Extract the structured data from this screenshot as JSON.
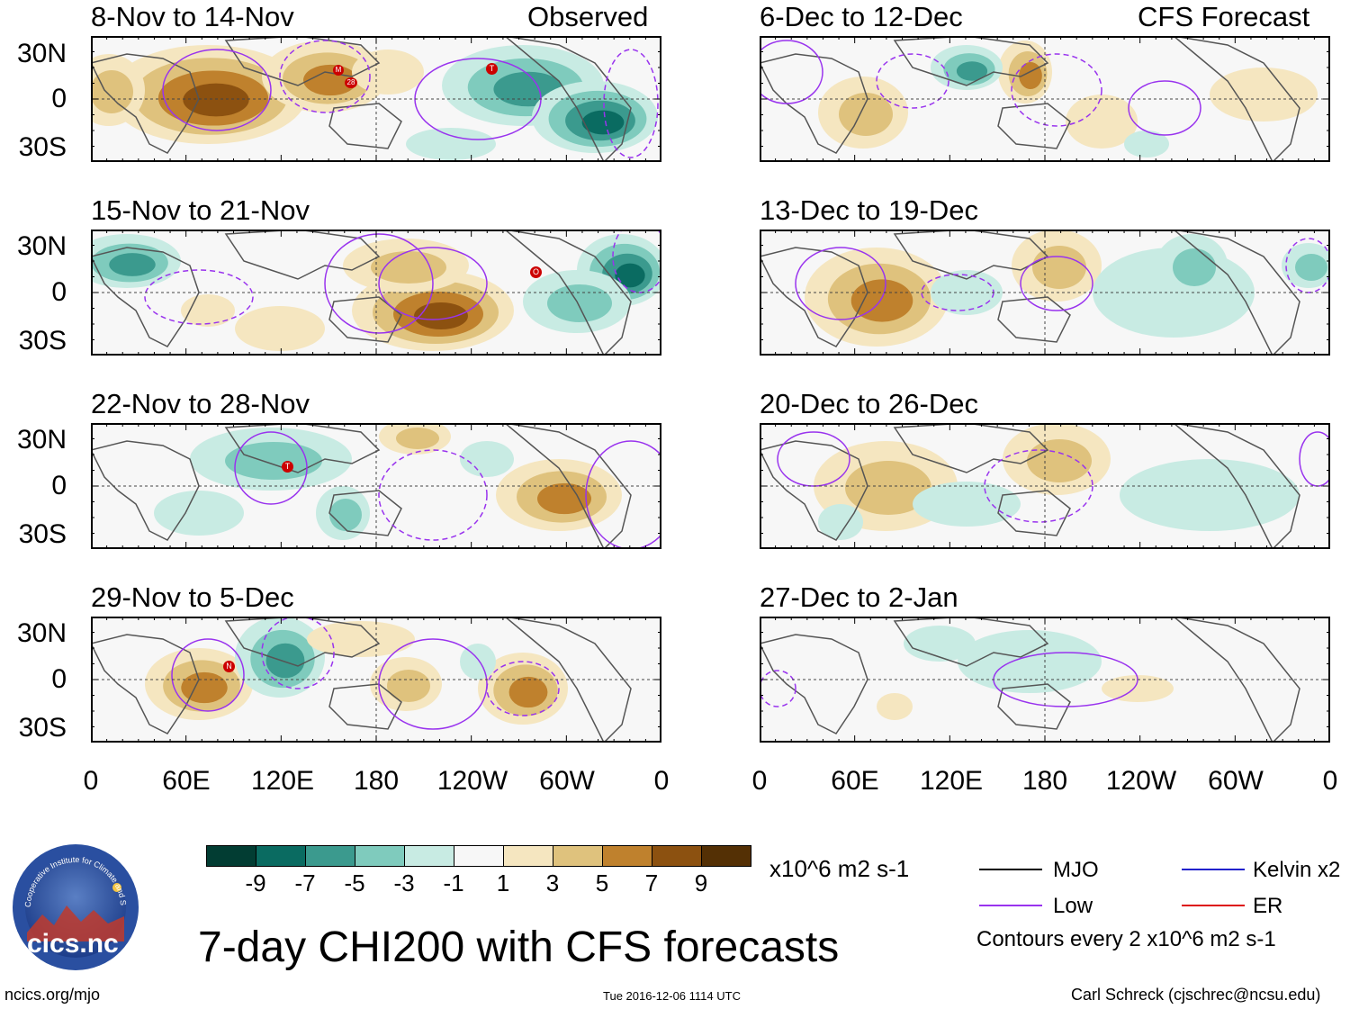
{
  "main_title": "7-day CHI200 with CFS forecasts",
  "observed_label": "Observed",
  "forecast_label": "CFS Forecast",
  "panels_observed": [
    {
      "title": "8-Nov to 14-Nov"
    },
    {
      "title": "15-Nov to 21-Nov"
    },
    {
      "title": "22-Nov to 28-Nov"
    },
    {
      "title": "29-Nov to 5-Dec"
    }
  ],
  "panels_forecast": [
    {
      "title": "6-Dec to 12-Dec"
    },
    {
      "title": "13-Dec to 19-Dec"
    },
    {
      "title": "20-Dec to 26-Dec"
    },
    {
      "title": "27-Dec to 2-Jan"
    }
  ],
  "y_ticks": [
    "30N",
    "0",
    "30S"
  ],
  "x_ticks": [
    "0",
    "60E",
    "120E",
    "180",
    "120W",
    "60W",
    "0"
  ],
  "colorbar": {
    "unit": "x10^6 m2 s-1",
    "labels": [
      "-9",
      "-7",
      "-5",
      "-3",
      "-1",
      "1",
      "3",
      "5",
      "7",
      "9"
    ],
    "colors": [
      "#023d33",
      "#0a6b61",
      "#3b9a8e",
      "#7fcbbd",
      "#c8ebe3",
      "#f7f7f7",
      "#f5e6c0",
      "#dfc27d",
      "#bf812d",
      "#8c5110",
      "#543005"
    ]
  },
  "legend": {
    "mjo": "MJO",
    "kelvin": "Kelvin x2",
    "low": "Low",
    "er": "ER",
    "contours": "Contours every 2 x10^6 m2 s-1",
    "mjo_color": "#000000",
    "kelvin_color": "#2222cc",
    "low_color": "#9933ee",
    "er_color": "#dd1111"
  },
  "logo": {
    "text": "cics.nc",
    "ring_text": "Cooperative Institute for Climate and Satellites"
  },
  "footer": {
    "left": "ncics.org/mjo",
    "center": "Tue 2016-12-06 1114 UTC",
    "right": "Carl Schreck (cjschrec@ncsu.edu)"
  },
  "storm_markers": {
    "panel1": [
      "M",
      "28",
      "T"
    ],
    "panel2": [
      "O"
    ],
    "panel3": [
      "T"
    ],
    "panel4": [
      "N"
    ]
  }
}
